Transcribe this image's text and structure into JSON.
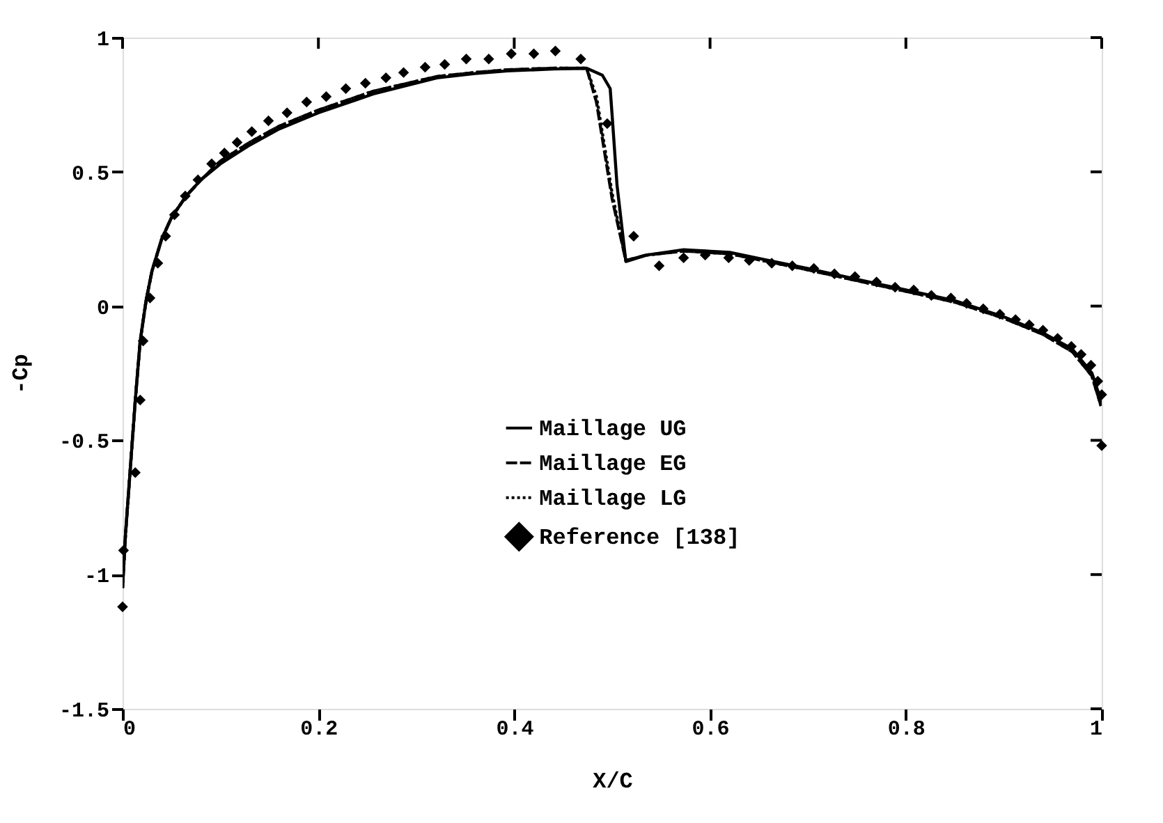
{
  "chart_data": {
    "type": "line",
    "xlabel": "X/C",
    "ylabel": "-Cp",
    "xlim": [
      0,
      1
    ],
    "ylim": [
      -1.5,
      1
    ],
    "xticks": [
      0,
      0.2,
      0.4,
      0.6,
      0.8,
      1
    ],
    "yticks": [
      -1.5,
      -1,
      -0.5,
      0,
      0.5,
      1
    ],
    "grid": false,
    "legend": "bottom",
    "series": [
      {
        "name": "Maillage UG",
        "color": "#000000",
        "line_style": "solid",
        "marker": "none",
        "x": [
          0,
          0.003,
          0.008,
          0.013,
          0.018,
          0.024,
          0.03,
          0.04,
          0.05,
          0.065,
          0.08,
          0.1,
          0.13,
          0.16,
          0.2,
          0.256,
          0.321,
          0.36,
          0.393,
          0.44,
          0.474,
          0.49,
          0.498,
          0.5,
          0.505,
          0.514,
          0.535,
          0.573,
          0.62,
          0.66,
          0.7,
          0.75,
          0.8,
          0.85,
          0.9,
          0.94,
          0.97,
          0.99,
          1.0
        ],
        "values": [
          -1.05,
          -0.85,
          -0.6,
          -0.35,
          -0.13,
          0.02,
          0.13,
          0.25,
          0.33,
          0.41,
          0.47,
          0.53,
          0.6,
          0.66,
          0.72,
          0.79,
          0.85,
          0.866,
          0.876,
          0.883,
          0.886,
          0.86,
          0.81,
          0.71,
          0.45,
          0.166,
          0.19,
          0.21,
          0.2,
          0.17,
          0.14,
          0.1,
          0.06,
          0.02,
          -0.04,
          -0.1,
          -0.16,
          -0.25,
          -0.36
        ]
      },
      {
        "name": "Maillage EG",
        "color": "#000000",
        "line_style": "dashed",
        "marker": "none",
        "x": [
          0,
          0.003,
          0.008,
          0.013,
          0.018,
          0.024,
          0.03,
          0.04,
          0.05,
          0.065,
          0.08,
          0.1,
          0.13,
          0.16,
          0.2,
          0.256,
          0.321,
          0.36,
          0.393,
          0.44,
          0.474,
          0.484,
          0.5,
          0.514,
          0.535,
          0.573,
          0.62,
          0.66,
          0.7,
          0.75,
          0.8,
          0.85,
          0.9,
          0.94,
          0.97,
          0.99,
          1.0
        ],
        "values": [
          -1.05,
          -0.85,
          -0.6,
          -0.35,
          -0.13,
          0.02,
          0.13,
          0.25,
          0.33,
          0.41,
          0.47,
          0.54,
          0.61,
          0.67,
          0.73,
          0.8,
          0.855,
          0.87,
          0.88,
          0.886,
          0.886,
          0.76,
          0.4,
          0.17,
          0.19,
          0.205,
          0.195,
          0.165,
          0.135,
          0.095,
          0.055,
          0.015,
          -0.045,
          -0.105,
          -0.17,
          -0.26,
          -0.38
        ]
      },
      {
        "name": "Maillage LG",
        "color": "#000000",
        "line_style": "dotted",
        "marker": "none",
        "x": [
          0,
          0.003,
          0.008,
          0.013,
          0.018,
          0.024,
          0.03,
          0.04,
          0.05,
          0.065,
          0.08,
          0.1,
          0.13,
          0.16,
          0.2,
          0.256,
          0.321,
          0.36,
          0.393,
          0.44,
          0.474,
          0.484,
          0.5,
          0.514,
          0.535,
          0.573,
          0.62,
          0.66,
          0.7,
          0.75,
          0.8,
          0.85,
          0.9,
          0.94,
          0.97,
          0.99,
          1.0
        ],
        "values": [
          -1.05,
          -0.85,
          -0.6,
          -0.35,
          -0.13,
          0.02,
          0.13,
          0.25,
          0.33,
          0.41,
          0.47,
          0.54,
          0.61,
          0.67,
          0.73,
          0.8,
          0.855,
          0.87,
          0.88,
          0.886,
          0.886,
          0.78,
          0.42,
          0.17,
          0.19,
          0.205,
          0.195,
          0.165,
          0.135,
          0.095,
          0.055,
          0.015,
          -0.045,
          -0.105,
          -0.17,
          -0.26,
          -0.38
        ]
      },
      {
        "name": "Reference [138]",
        "type": "scatter",
        "color": "#000000",
        "marker": "diamond",
        "x": [
          0,
          0.001,
          0.013,
          0.018,
          0.021,
          0.028,
          0.036,
          0.044,
          0.053,
          0.064,
          0.077,
          0.091,
          0.104,
          0.117,
          0.132,
          0.149,
          0.168,
          0.188,
          0.208,
          0.228,
          0.248,
          0.269,
          0.287,
          0.309,
          0.329,
          0.351,
          0.374,
          0.397,
          0.42,
          0.442,
          0.468,
          0.495,
          0.522,
          0.548,
          0.573,
          0.595,
          0.619,
          0.64,
          0.663,
          0.684,
          0.706,
          0.727,
          0.748,
          0.77,
          0.789,
          0.808,
          0.826,
          0.846,
          0.862,
          0.879,
          0.896,
          0.912,
          0.926,
          0.94,
          0.955,
          0.969,
          0.979,
          0.989,
          0.996,
          1.0,
          1.0
        ],
        "values": [
          -1.12,
          -0.91,
          -0.62,
          -0.35,
          -0.13,
          0.03,
          0.16,
          0.26,
          0.34,
          0.41,
          0.47,
          0.53,
          0.57,
          0.61,
          0.65,
          0.69,
          0.72,
          0.76,
          0.78,
          0.81,
          0.83,
          0.85,
          0.87,
          0.89,
          0.9,
          0.92,
          0.92,
          0.94,
          0.94,
          0.95,
          0.92,
          0.68,
          0.26,
          0.15,
          0.18,
          0.19,
          0.18,
          0.17,
          0.16,
          0.15,
          0.14,
          0.12,
          0.11,
          0.09,
          0.07,
          0.06,
          0.04,
          0.03,
          0.01,
          -0.01,
          -0.03,
          -0.05,
          -0.07,
          -0.09,
          -0.12,
          -0.15,
          -0.18,
          -0.22,
          -0.28,
          -0.33,
          -0.52
        ]
      }
    ]
  }
}
